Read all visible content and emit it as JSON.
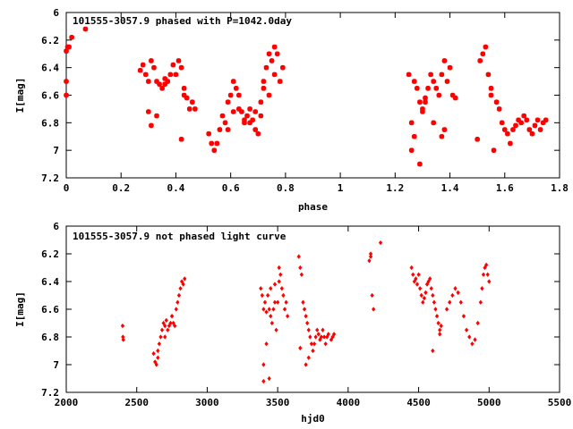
{
  "chart_data": [
    {
      "type": "scatter",
      "title": "101555-3057.9 phased with P=1042.0day",
      "xlabel": "phase",
      "ylabel": "I[mag]",
      "xlim": [
        0,
        1.8
      ],
      "ylim": [
        6,
        7.2
      ],
      "y_inverted": true,
      "xticks": [
        "0",
        "0.2",
        "0.4",
        "0.6",
        "0.8",
        "1",
        "1.2",
        "1.4",
        "1.6",
        "1.8"
      ],
      "yticks": [
        "6",
        "6.2",
        "6.4",
        "6.6",
        "6.8",
        "7",
        "7.2"
      ],
      "marker": "star",
      "color": "#ff0000",
      "x": [
        0.0,
        0.005,
        0.01,
        0.02,
        0.0,
        0.0,
        0.07,
        0.27,
        0.28,
        0.29,
        0.3,
        0.31,
        0.32,
        0.33,
        0.34,
        0.35,
        0.36,
        0.37,
        0.38,
        0.39,
        0.4,
        0.41,
        0.42,
        0.43,
        0.44,
        0.45,
        0.46,
        0.47,
        0.31,
        0.3,
        0.33,
        0.42,
        0.43,
        0.36,
        0.52,
        0.53,
        0.54,
        0.55,
        0.56,
        0.57,
        0.58,
        0.59,
        0.6,
        0.61,
        0.62,
        0.63,
        0.64,
        0.65,
        0.66,
        0.67,
        0.68,
        0.69,
        0.7,
        0.71,
        0.72,
        0.73,
        0.74,
        0.75,
        0.76,
        0.77,
        0.78,
        0.79,
        0.59,
        0.61,
        0.63,
        0.65,
        0.67,
        0.69,
        0.71,
        0.74,
        0.72,
        0.76,
        1.25,
        1.26,
        1.27,
        1.28,
        1.29,
        1.3,
        1.31,
        1.32,
        1.33,
        1.34,
        1.35,
        1.36,
        1.37,
        1.38,
        1.39,
        1.4,
        1.41,
        1.42,
        1.26,
        1.27,
        1.29,
        1.31,
        1.34,
        1.37,
        1.3,
        1.38,
        1.5,
        1.51,
        1.52,
        1.53,
        1.54,
        1.55,
        1.56,
        1.57,
        1.58,
        1.59,
        1.6,
        1.61,
        1.62,
        1.63,
        1.64,
        1.65,
        1.66,
        1.67,
        1.68,
        1.69,
        1.7,
        1.71,
        1.72,
        1.73,
        1.74,
        1.75,
        1.55
      ],
      "y": [
        6.6,
        6.25,
        6.25,
        6.18,
        6.5,
        6.28,
        6.12,
        6.42,
        6.38,
        6.45,
        6.5,
        6.35,
        6.4,
        6.5,
        6.52,
        6.55,
        6.48,
        6.5,
        6.45,
        6.38,
        6.45,
        6.35,
        6.4,
        6.55,
        6.62,
        6.7,
        6.65,
        6.7,
        6.82,
        6.72,
        6.75,
        6.92,
        6.6,
        6.52,
        6.88,
        6.95,
        7.0,
        6.95,
        6.85,
        6.75,
        6.8,
        6.65,
        6.6,
        6.5,
        6.55,
        6.6,
        6.72,
        6.8,
        6.75,
        6.7,
        6.78,
        6.85,
        6.88,
        6.75,
        6.5,
        6.4,
        6.3,
        6.35,
        6.25,
        6.3,
        6.5,
        6.4,
        6.85,
        6.72,
        6.7,
        6.78,
        6.8,
        6.72,
        6.65,
        6.6,
        6.55,
        6.45,
        6.45,
        7.0,
        6.5,
        6.55,
        6.65,
        6.7,
        6.62,
        6.55,
        6.45,
        6.5,
        6.55,
        6.6,
        6.45,
        6.35,
        6.5,
        6.4,
        6.6,
        6.62,
        6.8,
        6.9,
        7.1,
        6.65,
        6.8,
        6.9,
        6.72,
        6.85,
        6.92,
        6.35,
        6.3,
        6.25,
        6.45,
        6.55,
        7.0,
        6.65,
        6.7,
        6.8,
        6.85,
        6.88,
        6.95,
        6.85,
        6.82,
        6.78,
        6.8,
        6.75,
        6.78,
        6.85,
        6.88,
        6.82,
        6.78,
        6.85,
        6.8,
        6.78,
        6.6
      ]
    },
    {
      "type": "scatter",
      "title": "101555-3057.9 not phased light curve",
      "xlabel": "hjd0",
      "ylabel": "I[mag]",
      "xlim": [
        2000,
        5500
      ],
      "ylim": [
        6,
        7.2
      ],
      "y_inverted": true,
      "xticks": [
        "2000",
        "2500",
        "3000",
        "3500",
        "4000",
        "4500",
        "5000",
        "5500"
      ],
      "yticks": [
        "6",
        "6.2",
        "6.4",
        "6.6",
        "6.8",
        "7",
        "7.2"
      ],
      "marker": "diamond",
      "color": "#ff0000",
      "x": [
        2400,
        2402,
        2405,
        2620,
        2630,
        2640,
        2650,
        2660,
        2670,
        2680,
        2690,
        2700,
        2710,
        2720,
        2730,
        2740,
        2750,
        2760,
        2770,
        2780,
        2790,
        2800,
        2810,
        2820,
        2830,
        2840,
        2650,
        2700,
        2750,
        3380,
        3390,
        3400,
        3410,
        3420,
        3430,
        3440,
        3450,
        3460,
        3470,
        3480,
        3490,
        3500,
        3510,
        3520,
        3530,
        3540,
        3550,
        3560,
        3570,
        3400,
        3420,
        3450,
        3480,
        3510,
        3400,
        3440,
        3650,
        3660,
        3670,
        3680,
        3690,
        3700,
        3710,
        3720,
        3730,
        3740,
        3750,
        3760,
        3770,
        3780,
        3790,
        3800,
        3810,
        3820,
        3830,
        3840,
        3850,
        3860,
        3880,
        3890,
        3900,
        3660,
        3700,
        3720,
        4150,
        4160,
        4170,
        4180,
        4230,
        4160,
        4450,
        4460,
        4470,
        4480,
        4490,
        4500,
        4510,
        4520,
        4530,
        4540,
        4550,
        4560,
        4570,
        4580,
        4590,
        4600,
        4610,
        4620,
        4630,
        4640,
        4650,
        4660,
        4700,
        4720,
        4740,
        4760,
        4780,
        4800,
        4820,
        4840,
        4860,
        4880,
        4900,
        4920,
        4940,
        4950,
        4960,
        4970,
        4980,
        4990,
        5000,
        4600,
        4650
      ],
      "y": [
        6.72,
        6.8,
        6.82,
        6.92,
        6.98,
        7.0,
        6.9,
        6.85,
        6.8,
        6.75,
        6.7,
        6.72,
        6.68,
        6.75,
        6.72,
        6.7,
        6.65,
        6.7,
        6.72,
        6.6,
        6.55,
        6.5,
        6.45,
        6.4,
        6.42,
        6.38,
        6.95,
        6.8,
        6.65,
        6.45,
        6.5,
        6.6,
        6.55,
        6.62,
        6.5,
        6.6,
        6.65,
        6.7,
        6.6,
        6.55,
        6.75,
        6.55,
        6.3,
        6.35,
        6.45,
        6.5,
        6.6,
        6.55,
        6.65,
        7.0,
        6.85,
        6.45,
        6.42,
        6.4,
        7.12,
        7.1,
        6.22,
        6.3,
        6.35,
        6.55,
        6.6,
        6.65,
        6.7,
        6.75,
        6.8,
        6.85,
        6.9,
        6.85,
        6.8,
        6.75,
        6.78,
        6.82,
        6.8,
        6.75,
        6.8,
        6.85,
        6.8,
        6.78,
        6.82,
        6.8,
        6.78,
        6.88,
        7.0,
        6.95,
        6.25,
        6.2,
        6.5,
        6.6,
        6.12,
        6.22,
        6.3,
        6.35,
        6.4,
        6.38,
        6.42,
        6.35,
        6.45,
        6.5,
        6.55,
        6.52,
        6.48,
        6.42,
        6.4,
        6.38,
        6.45,
        6.5,
        6.55,
        6.6,
        6.65,
        6.7,
        6.75,
        6.72,
        6.6,
        6.55,
        6.5,
        6.45,
        6.48,
        6.55,
        6.65,
        6.75,
        6.8,
        6.85,
        6.82,
        6.7,
        6.55,
        6.45,
        6.35,
        6.3,
        6.28,
        6.35,
        6.4,
        6.9,
        6.78
      ]
    }
  ]
}
